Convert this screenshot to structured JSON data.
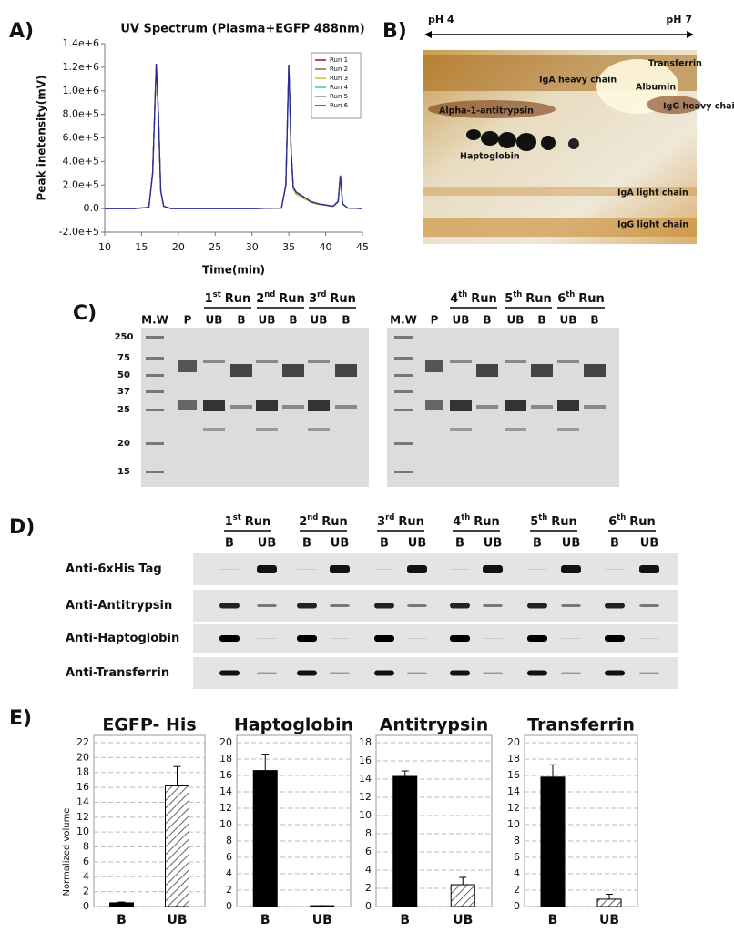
{
  "panel_labels": [
    "A)",
    "B)",
    "C)",
    "D)",
    "E)"
  ],
  "chart_data": [
    {
      "type": "line",
      "title": "UV Spectrum (Plasma+EGFP 488nm)",
      "x_label": "Time(min)",
      "y_label": "Peak inetensity(mV)",
      "x": [
        10,
        14,
        16,
        16.5,
        17,
        17.3,
        17.6,
        18,
        19,
        25,
        30,
        34,
        34.6,
        35,
        35.3,
        35.6,
        36,
        36.5,
        37,
        37.5,
        38,
        39,
        40,
        41,
        41.7,
        42,
        42.3,
        43,
        45
      ],
      "xlim": [
        10,
        45
      ],
      "xticks": [
        10,
        15,
        20,
        25,
        30,
        35,
        40,
        45
      ],
      "ylim": [
        -200000,
        1400000
      ],
      "yticks": [
        {
          "value": -200000,
          "label": "-2.0e+5"
        },
        {
          "value": 0,
          "label": "0.0"
        },
        {
          "value": 200000,
          "label": "2.0e+5"
        },
        {
          "value": 400000,
          "label": "4.0e+5"
        },
        {
          "value": 600000,
          "label": "6.0e+5"
        },
        {
          "value": 800000,
          "label": "8.0e+5"
        },
        {
          "value": 1000000,
          "label": "1.0e+6"
        },
        {
          "value": 1200000,
          "label": "1.2e+6"
        },
        {
          "value": 1400000,
          "label": "1.4e+6"
        }
      ],
      "legend": "upper right",
      "series": [
        {
          "name": "Run 1",
          "color": "#8b1a1a",
          "values": [
            0,
            0,
            10000,
            300000,
            1230000,
            800000,
            150000,
            20000,
            0,
            0,
            0,
            5000,
            200000,
            1220000,
            500000,
            180000,
            140000,
            120000,
            100000,
            80000,
            60000,
            40000,
            30000,
            20000,
            60000,
            280000,
            40000,
            5000,
            0
          ]
        },
        {
          "name": "Run 2",
          "color": "#8b6a2a",
          "values": [
            0,
            0,
            10000,
            300000,
            1230000,
            800000,
            150000,
            20000,
            0,
            0,
            0,
            5000,
            200000,
            1220000,
            500000,
            175000,
            135000,
            115000,
            95000,
            78000,
            58000,
            40000,
            30000,
            20000,
            60000,
            280000,
            40000,
            5000,
            0
          ]
        },
        {
          "name": "Run 3",
          "color": "#c8c040",
          "values": [
            0,
            0,
            10000,
            300000,
            1230000,
            800000,
            150000,
            20000,
            0,
            0,
            0,
            5000,
            200000,
            1220000,
            480000,
            160000,
            120000,
            105000,
            85000,
            70000,
            50000,
            35000,
            28000,
            18000,
            55000,
            270000,
            38000,
            5000,
            0
          ]
        },
        {
          "name": "Run 4",
          "color": "#40c0c8",
          "values": [
            0,
            0,
            10000,
            300000,
            1230000,
            800000,
            150000,
            20000,
            0,
            0,
            0,
            5000,
            200000,
            1220000,
            500000,
            180000,
            140000,
            120000,
            100000,
            80000,
            60000,
            40000,
            30000,
            20000,
            60000,
            280000,
            40000,
            5000,
            0
          ]
        },
        {
          "name": "Run 5",
          "color": "#909090",
          "values": [
            0,
            0,
            10000,
            300000,
            1230000,
            800000,
            150000,
            20000,
            0,
            0,
            0,
            5000,
            200000,
            1220000,
            500000,
            180000,
            140000,
            120000,
            100000,
            80000,
            60000,
            40000,
            30000,
            20000,
            60000,
            280000,
            40000,
            5000,
            0
          ]
        },
        {
          "name": "Run 6",
          "color": "#2a2a9a",
          "values": [
            0,
            0,
            10000,
            300000,
            1230000,
            800000,
            150000,
            20000,
            0,
            0,
            0,
            5000,
            200000,
            1220000,
            500000,
            180000,
            140000,
            120000,
            100000,
            80000,
            60000,
            40000,
            30000,
            20000,
            60000,
            280000,
            40000,
            5000,
            0
          ]
        }
      ]
    },
    {
      "type": "bar",
      "title": "EGFP- His",
      "y_label": "Normalized volume",
      "categories": [
        "B",
        "UB"
      ],
      "values": [
        0.5,
        16.2
      ],
      "errors": [
        0.1,
        2.6
      ],
      "colors": [
        "#000000",
        "#ffffff"
      ],
      "hatch": [
        false,
        true
      ],
      "ylim": [
        0,
        22
      ],
      "yticks": [
        0,
        2,
        4,
        6,
        8,
        10,
        12,
        14,
        16,
        18,
        20,
        22
      ],
      "grid": true
    },
    {
      "type": "bar",
      "title": "Haptoglobin",
      "categories": [
        "B",
        "UB"
      ],
      "values": [
        16.6,
        0.1
      ],
      "errors": [
        2.0,
        0
      ],
      "colors": [
        "#000000",
        "#ffffff"
      ],
      "hatch": [
        false,
        true
      ],
      "ylim": [
        0,
        20
      ],
      "yticks": [
        0,
        2,
        4,
        6,
        8,
        10,
        12,
        14,
        16,
        18,
        20
      ],
      "grid": true
    },
    {
      "type": "bar",
      "title": "Antitrypsin",
      "categories": [
        "B",
        "UB"
      ],
      "values": [
        14.3,
        2.4
      ],
      "errors": [
        0.6,
        0.8
      ],
      "colors": [
        "#000000",
        "#ffffff"
      ],
      "hatch": [
        false,
        true
      ],
      "ylim": [
        0,
        18
      ],
      "yticks": [
        0,
        2,
        4,
        6,
        8,
        10,
        12,
        14,
        16,
        18
      ],
      "grid": true
    },
    {
      "type": "bar",
      "title": "Transferrin",
      "categories": [
        "B",
        "UB"
      ],
      "values": [
        15.8,
        0.9
      ],
      "errors": [
        1.5,
        0.6
      ],
      "colors": [
        "#000000",
        "#ffffff"
      ],
      "hatch": [
        false,
        true
      ],
      "ylim": [
        0,
        20
      ],
      "yticks": [
        0,
        2,
        4,
        6,
        8,
        10,
        12,
        14,
        16,
        18,
        20
      ],
      "grid": true
    }
  ],
  "gel_2d": {
    "ph_left": "pH 4",
    "ph_right": "pH 7",
    "spots": [
      "Transferrin",
      "IgA heavy chain",
      "Albumin",
      "IgG heavy chain",
      "Alpha-1-antitrypsin",
      "Haptoglobin",
      "IgA light chain",
      "IgG light chain"
    ]
  },
  "sds_page": {
    "runs": [
      {
        "number": "1",
        "suffix": "st",
        "word": "Run"
      },
      {
        "number": "2",
        "suffix": "nd",
        "word": "Run"
      },
      {
        "number": "3",
        "suffix": "rd",
        "word": "Run"
      },
      {
        "number": "4",
        "suffix": "th",
        "word": "Run"
      },
      {
        "number": "5",
        "suffix": "th",
        "word": "Run"
      },
      {
        "number": "6",
        "suffix": "th",
        "word": "Run"
      }
    ],
    "lanes": [
      "M.W",
      "P",
      "UB",
      "B",
      "UB",
      "B",
      "UB",
      "B",
      "M.W",
      "P",
      "UB",
      "B",
      "UB",
      "B",
      "UB",
      "B"
    ],
    "markers": [
      "250",
      "75",
      "50",
      "37",
      "25",
      "20",
      "15"
    ]
  },
  "western": {
    "runs": [
      {
        "number": "1",
        "suffix": "st",
        "word": "Run"
      },
      {
        "number": "2",
        "suffix": "nd",
        "word": "Run"
      },
      {
        "number": "3",
        "suffix": "rd",
        "word": "Run"
      },
      {
        "number": "4",
        "suffix": "th",
        "word": "Run"
      },
      {
        "number": "5",
        "suffix": "th",
        "word": "Run"
      },
      {
        "number": "6",
        "suffix": "th",
        "word": "Run"
      }
    ],
    "lanes": [
      "B",
      "UB",
      "B",
      "UB",
      "B",
      "UB",
      "B",
      "UB",
      "B",
      "UB",
      "B",
      "UB"
    ],
    "rows": [
      "Anti-6xHis Tag",
      "Anti-Antitrypsin",
      "Anti-Haptoglobin",
      "Anti-Transferrin"
    ]
  }
}
